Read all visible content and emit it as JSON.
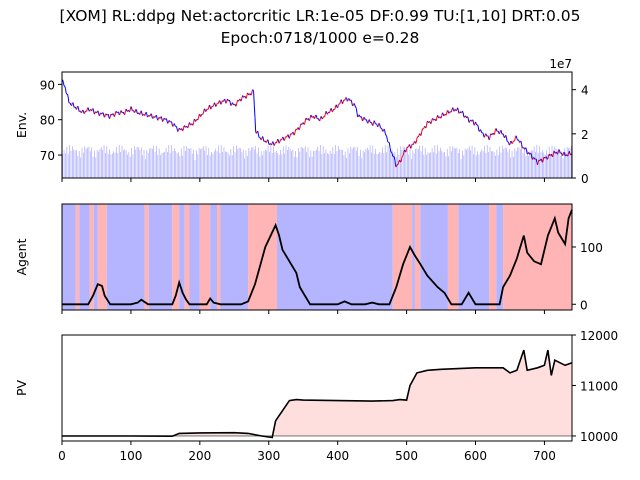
{
  "chart_data": {
    "title_line1": "[XOM] RL:ddpg Net:actorcritic LR:1e-05 DF:0.99 TU:[1,10] DRT:0.05",
    "title_line2": "Epoch:0718/1000 e=0.28",
    "xlim": [
      0,
      740
    ],
    "x_ticks": [
      0,
      100,
      200,
      300,
      400,
      500,
      600,
      700
    ],
    "panels": [
      {
        "id": "env",
        "type": "line",
        "ylabel": "Env.",
        "ylim": [
          63.5,
          93.5
        ],
        "y_ticks": [
          70,
          80,
          90
        ],
        "right_axis": {
          "ylim": [
            0,
            48000000
          ],
          "ticks": [
            "0",
            "2",
            "4"
          ],
          "tick_values": [
            0,
            20000000,
            40000000
          ],
          "offset_text": "1e7"
        },
        "colors": {
          "up": "#ff0000",
          "down": "#0000ff",
          "volume": "#aaaaff"
        },
        "series": [
          {
            "name": "price",
            "points": [
              [
                0,
                91
              ],
              [
                5,
                89
              ],
              [
                10,
                85
              ],
              [
                20,
                83.5
              ],
              [
                30,
                82
              ],
              [
                40,
                83
              ],
              [
                50,
                82
              ],
              [
                60,
                81.5
              ],
              [
                70,
                81
              ],
              [
                80,
                82
              ],
              [
                90,
                82
              ],
              [
                100,
                83
              ],
              [
                110,
                82
              ],
              [
                120,
                81.5
              ],
              [
                130,
                81
              ],
              [
                140,
                80.5
              ],
              [
                150,
                80
              ],
              [
                160,
                79
              ],
              [
                170,
                77
              ],
              [
                180,
                78
              ],
              [
                190,
                79
              ],
              [
                200,
                81
              ],
              [
                210,
                83
              ],
              [
                220,
                84
              ],
              [
                230,
                85
              ],
              [
                240,
                85.5
              ],
              [
                250,
                84
              ],
              [
                260,
                86
              ],
              [
                270,
                87
              ],
              [
                278,
                88
              ],
              [
                281,
                77
              ],
              [
                287,
                75
              ],
              [
                295,
                74
              ],
              [
                305,
                73
              ],
              [
                315,
                74
              ],
              [
                325,
                75
              ],
              [
                335,
                76
              ],
              [
                345,
                78
              ],
              [
                355,
                80
              ],
              [
                365,
                81
              ],
              [
                375,
                80
              ],
              [
                385,
                82
              ],
              [
                395,
                83
              ],
              [
                405,
                85
              ],
              [
                415,
                86
              ],
              [
                420,
                85
              ],
              [
                425,
                84
              ],
              [
                430,
                81
              ],
              [
                440,
                80
              ],
              [
                450,
                79
              ],
              [
                455,
                79
              ],
              [
                462,
                78
              ],
              [
                470,
                76
              ],
              [
                476,
                72
              ],
              [
                480,
                70
              ],
              [
                485,
                67
              ],
              [
                490,
                68
              ],
              [
                495,
                70
              ],
              [
                500,
                72
              ],
              [
                510,
                73
              ],
              [
                520,
                76
              ],
              [
                530,
                79
              ],
              [
                540,
                80
              ],
              [
                550,
                81
              ],
              [
                560,
                82
              ],
              [
                570,
                83
              ],
              [
                580,
                82
              ],
              [
                590,
                80
              ],
              [
                600,
                79
              ],
              [
                610,
                76
              ],
              [
                620,
                75
              ],
              [
                630,
                77
              ],
              [
                640,
                76
              ],
              [
                650,
                73
              ],
              [
                660,
                75
              ],
              [
                670,
                72
              ],
              [
                680,
                70
              ],
              [
                690,
                68
              ],
              [
                700,
                69
              ],
              [
                710,
                70
              ],
              [
                720,
                71
              ],
              [
                730,
                70
              ],
              [
                740,
                70.5
              ]
            ]
          }
        ]
      },
      {
        "id": "agent",
        "type": "line",
        "ylabel": "Agent",
        "ylim": [
          -10,
          175
        ],
        "y_ticks": [
          0,
          100
        ],
        "colors": {
          "line": "#000000",
          "long_bg": "#ffb5b5",
          "short_bg": "#b5b5ff"
        },
        "background_regions": [
          [
            0,
            20,
            "short"
          ],
          [
            20,
            25,
            "long"
          ],
          [
            25,
            40,
            "short"
          ],
          [
            40,
            46,
            "long"
          ],
          [
            46,
            52,
            "short"
          ],
          [
            52,
            65,
            "long"
          ],
          [
            65,
            120,
            "short"
          ],
          [
            120,
            126,
            "long"
          ],
          [
            126,
            160,
            "short"
          ],
          [
            160,
            170,
            "long"
          ],
          [
            170,
            178,
            "short"
          ],
          [
            178,
            185,
            "long"
          ],
          [
            185,
            200,
            "short"
          ],
          [
            200,
            215,
            "long"
          ],
          [
            215,
            225,
            "short"
          ],
          [
            225,
            230,
            "long"
          ],
          [
            230,
            270,
            "short"
          ],
          [
            270,
            312,
            "long"
          ],
          [
            312,
            480,
            "short"
          ],
          [
            480,
            508,
            "long"
          ],
          [
            508,
            512,
            "short"
          ],
          [
            512,
            520,
            "long"
          ],
          [
            520,
            560,
            "short"
          ],
          [
            560,
            575,
            "long"
          ],
          [
            575,
            620,
            "short"
          ],
          [
            620,
            630,
            "long"
          ],
          [
            630,
            640,
            "short"
          ],
          [
            640,
            740,
            "long"
          ]
        ],
        "series": [
          {
            "name": "position",
            "points": [
              [
                0,
                0
              ],
              [
                25,
                0
              ],
              [
                38,
                0
              ],
              [
                45,
                15
              ],
              [
                52,
                35
              ],
              [
                58,
                32
              ],
              [
                62,
                15
              ],
              [
                70,
                0
              ],
              [
                100,
                0
              ],
              [
                110,
                3
              ],
              [
                115,
                8
              ],
              [
                125,
                0
              ],
              [
                160,
                0
              ],
              [
                165,
                15
              ],
              [
                170,
                38
              ],
              [
                175,
                20
              ],
              [
                180,
                8
              ],
              [
                185,
                0
              ],
              [
                210,
                0
              ],
              [
                215,
                10
              ],
              [
                220,
                3
              ],
              [
                230,
                0
              ],
              [
                260,
                0
              ],
              [
                270,
                5
              ],
              [
                280,
                35
              ],
              [
                295,
                100
              ],
              [
                310,
                138
              ],
              [
                315,
                120
              ],
              [
                320,
                95
              ],
              [
                330,
                75
              ],
              [
                340,
                55
              ],
              [
                345,
                30
              ],
              [
                360,
                0
              ],
              [
                400,
                0
              ],
              [
                410,
                5
              ],
              [
                420,
                0
              ],
              [
                440,
                0
              ],
              [
                450,
                3
              ],
              [
                460,
                0
              ],
              [
                475,
                0
              ],
              [
                485,
                30
              ],
              [
                495,
                70
              ],
              [
                505,
                100
              ],
              [
                512,
                85
              ],
              [
                520,
                70
              ],
              [
                530,
                50
              ],
              [
                545,
                30
              ],
              [
                555,
                20
              ],
              [
                565,
                0
              ],
              [
                580,
                0
              ],
              [
                590,
                20
              ],
              [
                600,
                0
              ],
              [
                610,
                0
              ],
              [
                625,
                0
              ],
              [
                635,
                0
              ],
              [
                640,
                30
              ],
              [
                650,
                50
              ],
              [
                660,
                80
              ],
              [
                665,
                100
              ],
              [
                670,
                120
              ],
              [
                675,
                90
              ],
              [
                685,
                75
              ],
              [
                695,
                70
              ],
              [
                705,
                120
              ],
              [
                715,
                150
              ],
              [
                720,
                125
              ],
              [
                730,
                105
              ],
              [
                735,
                150
              ],
              [
                740,
                165
              ]
            ]
          }
        ]
      },
      {
        "id": "pv",
        "type": "area",
        "ylabel": "PV",
        "ylim": [
          9900,
          12000
        ],
        "y_ticks": [
          10000,
          11000,
          12000
        ],
        "baseline": 10000,
        "colors": {
          "line": "#000000",
          "baseline": "#808080",
          "fill": "#ffdede"
        },
        "series": [
          {
            "name": "portfolio",
            "points": [
              [
                0,
                10000
              ],
              [
                100,
                10000
              ],
              [
                160,
                9995
              ],
              [
                170,
                10050
              ],
              [
                200,
                10060
              ],
              [
                250,
                10065
              ],
              [
                270,
                10050
              ],
              [
                290,
                10000
              ],
              [
                305,
                9970
              ],
              [
                310,
                10300
              ],
              [
                320,
                10500
              ],
              [
                330,
                10700
              ],
              [
                340,
                10720
              ],
              [
                350,
                10710
              ],
              [
                400,
                10700
              ],
              [
                450,
                10690
              ],
              [
                480,
                10700
              ],
              [
                490,
                10720
              ],
              [
                500,
                10710
              ],
              [
                505,
                11000
              ],
              [
                515,
                11250
              ],
              [
                530,
                11300
              ],
              [
                550,
                11320
              ],
              [
                600,
                11350
              ],
              [
                640,
                11350
              ],
              [
                650,
                11250
              ],
              [
                660,
                11300
              ],
              [
                665,
                11500
              ],
              [
                670,
                11700
              ],
              [
                675,
                11300
              ],
              [
                690,
                11350
              ],
              [
                700,
                11400
              ],
              [
                705,
                11700
              ],
              [
                710,
                11200
              ],
              [
                715,
                11500
              ],
              [
                730,
                11400
              ],
              [
                740,
                11450
              ]
            ]
          }
        ]
      }
    ]
  }
}
